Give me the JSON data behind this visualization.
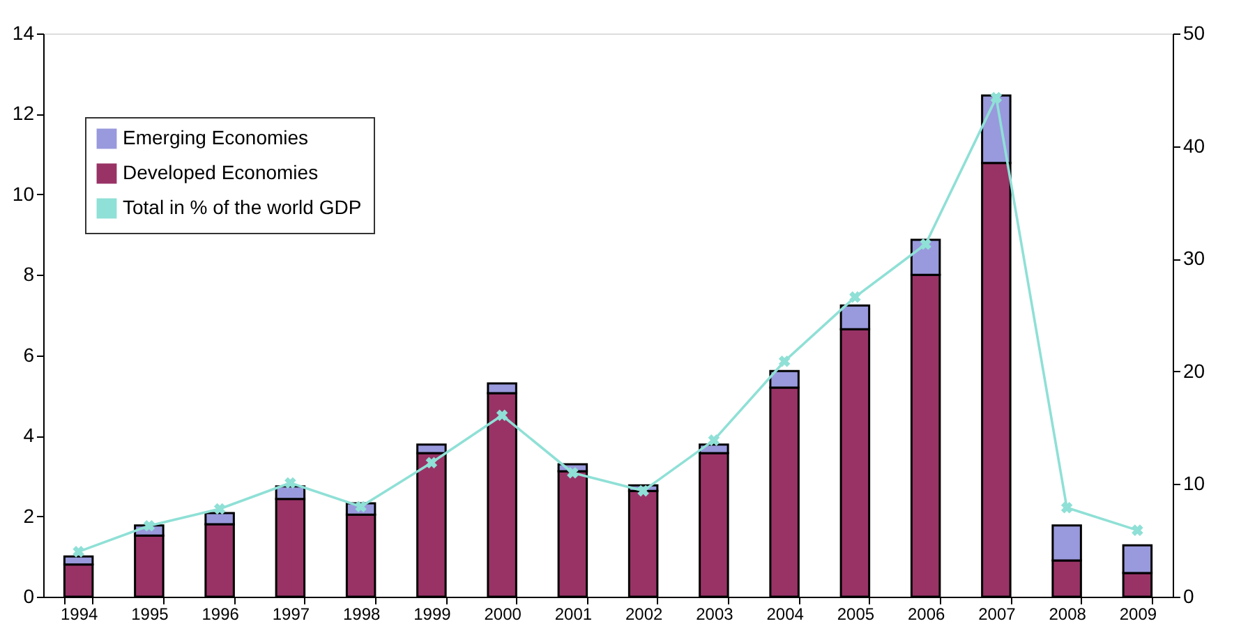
{
  "chart_data": {
    "type": "bar",
    "stacked": true,
    "categories": [
      "1994",
      "1995",
      "1996",
      "1997",
      "1998",
      "1999",
      "2000",
      "2001",
      "2002",
      "2003",
      "2004",
      "2005",
      "2006",
      "2007",
      "2008",
      "2009"
    ],
    "series": [
      {
        "name": "Developed Economies",
        "color": "#993366",
        "values": [
          0.8,
          1.52,
          1.8,
          2.43,
          2.04,
          3.57,
          5.06,
          3.12,
          2.63,
          3.57,
          5.2,
          6.65,
          8.0,
          10.78,
          0.9,
          0.59
        ]
      },
      {
        "name": "Emerging Economies",
        "color": "#9999dd",
        "values": [
          0.2,
          0.25,
          0.28,
          0.31,
          0.28,
          0.21,
          0.24,
          0.17,
          0.14,
          0.21,
          0.41,
          0.59,
          0.87,
          1.68,
          0.87,
          0.69
        ]
      },
      {
        "name": "Total in % of the world GDP",
        "type": "line",
        "axis": "y2",
        "color": "#8fe0d6",
        "values": [
          4.0,
          6.3,
          7.8,
          10.1,
          8.0,
          11.9,
          16.1,
          11.0,
          9.4,
          13.9,
          20.9,
          26.6,
          31.3,
          44.3,
          7.9,
          5.9
        ]
      }
    ],
    "ylim": [
      0,
      14
    ],
    "yticks": [
      0,
      2,
      4,
      6,
      8,
      10,
      12,
      14
    ],
    "y2lim": [
      0,
      50
    ],
    "y2ticks": [
      0,
      10,
      20,
      30,
      40,
      50
    ],
    "legend": "top left",
    "marker": "cross"
  }
}
